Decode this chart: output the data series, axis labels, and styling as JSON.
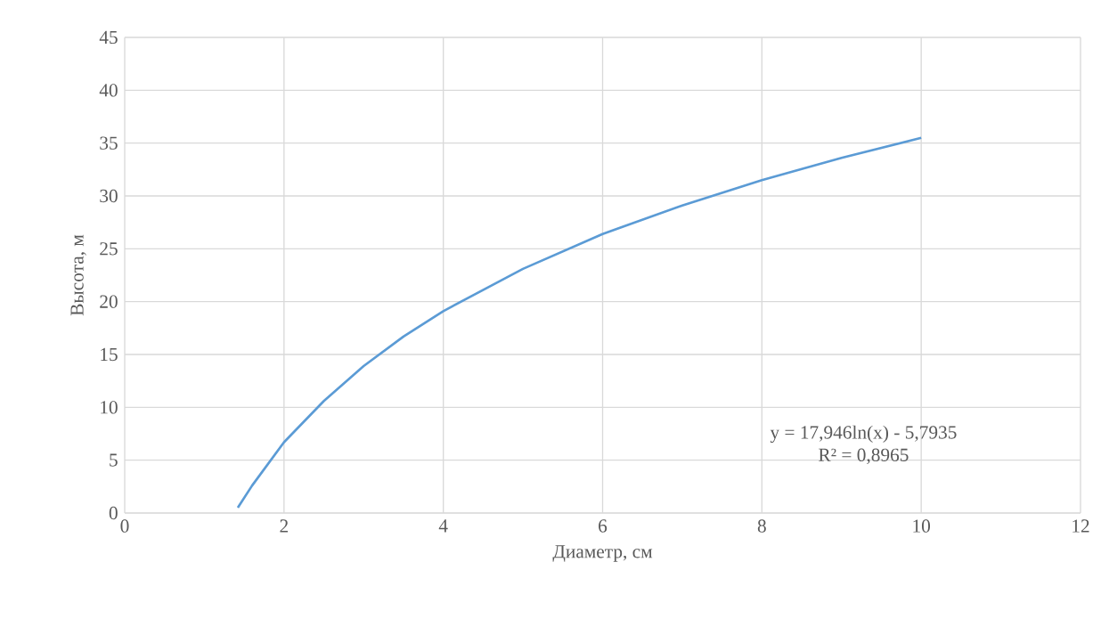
{
  "chart_data": {
    "type": "line",
    "xlabel": "Диаметр, см",
    "ylabel": "Высота, м",
    "x": [
      1.42,
      1.6,
      2,
      2.5,
      3,
      3.5,
      4,
      5,
      6,
      7,
      8,
      9,
      10
    ],
    "series": [
      {
        "color": "#5b9bd5",
        "values": [
          0.5,
          2.6,
          6.7,
          10.6,
          13.9,
          16.7,
          19.1,
          23.1,
          26.4,
          29.1,
          31.5,
          33.6,
          35.5
        ]
      }
    ],
    "xlim": [
      0,
      12
    ],
    "xticks": [
      0,
      2,
      4,
      6,
      8,
      10,
      12
    ],
    "ylim": [
      0,
      45
    ],
    "yticks": [
      0,
      5,
      10,
      15,
      20,
      25,
      30,
      35,
      40,
      45
    ],
    "grid": true,
    "marker": "none",
    "line_style": "solid",
    "annotations": [
      "y = 17,946ln(x) - 5,7935",
      "R² = 0,8965"
    ]
  }
}
